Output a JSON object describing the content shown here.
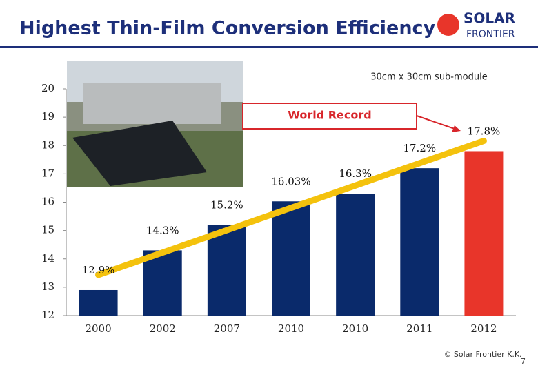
{
  "chart_data": {
    "type": "bar",
    "title": "Highest Thin-Film Conversion Efficiency",
    "annotations": [
      "30cm x 30cm sub-module",
      "World Record"
    ],
    "categories": [
      "2000",
      "2002",
      "2007",
      "2010",
      "2010",
      "2011",
      "2012"
    ],
    "values": [
      12.9,
      14.3,
      15.2,
      16.03,
      16.3,
      17.2,
      17.8
    ],
    "value_labels": [
      "12.9%",
      "14.3%",
      "15.2%",
      "16.03%",
      "16.3%",
      "17.2%",
      "17.8%"
    ],
    "colors": [
      "#0a2a6b",
      "#0a2a6b",
      "#0a2a6b",
      "#0a2a6b",
      "#0a2a6b",
      "#0a2a6b",
      "#e8352a"
    ],
    "ylim": [
      12,
      20
    ],
    "yticks": [
      12,
      13,
      14,
      15,
      16,
      17,
      18,
      19,
      20
    ],
    "grid": false
  },
  "slide": {
    "logo": [
      "SOLAR",
      "FRONTIER"
    ],
    "copyright": "© Solar Frontier K.K.",
    "page_number": 7
  }
}
